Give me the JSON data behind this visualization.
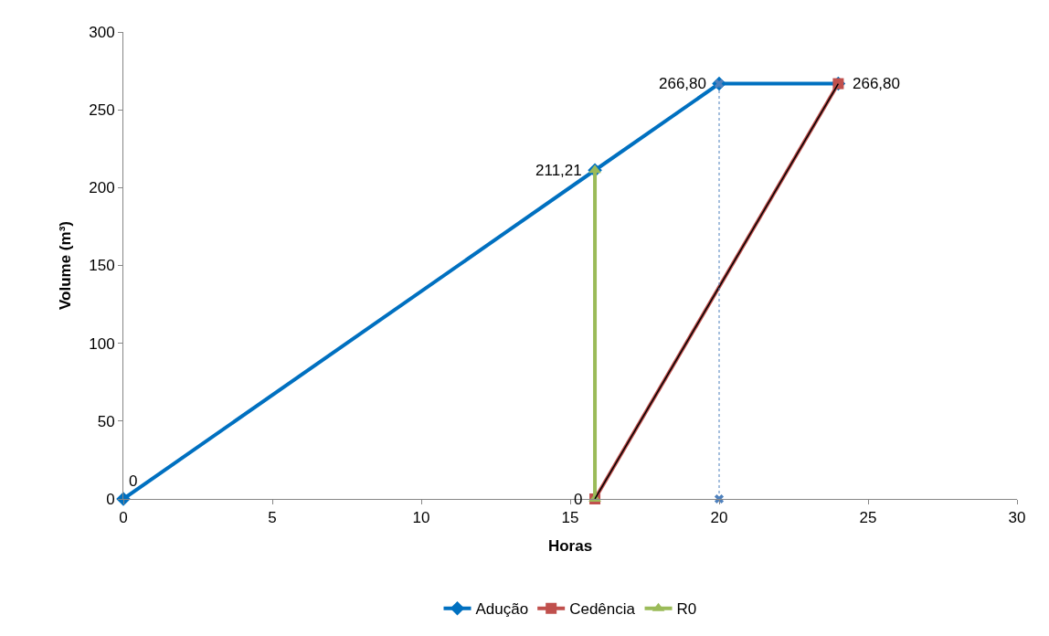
{
  "chart_data": {
    "type": "line",
    "xlabel": "Horas",
    "ylabel": "Volume (m³)",
    "xlim": [
      0,
      30
    ],
    "xticks": [
      0,
      5,
      10,
      15,
      20,
      25,
      30
    ],
    "ylim": [
      0,
      300
    ],
    "yticks": [
      0,
      50,
      100,
      150,
      200,
      250,
      300
    ],
    "legend": "bottom",
    "series": [
      {
        "name": "Adução",
        "color": "#0070c0",
        "marker": "diamond",
        "x": [
          0,
          15.83,
          20,
          24
        ],
        "values": [
          0,
          211.21,
          266.8,
          266.8
        ],
        "value_labels": [
          "0",
          "211,21",
          "266,80",
          null
        ]
      },
      {
        "name": "Cedência",
        "color": "#c0504d",
        "marker": "square",
        "x": [
          15.83,
          24
        ],
        "values": [
          0,
          266.8
        ],
        "value_labels": [
          "0",
          "266,80"
        ]
      },
      {
        "name": "R0",
        "color": "#9bbb59",
        "marker": "triangle",
        "x": [
          15.83,
          15.83
        ],
        "values": [
          0,
          211.21
        ]
      },
      {
        "color": "#000000",
        "marker": "none",
        "x": [
          15.83,
          24
        ],
        "values": [
          0,
          266.8
        ]
      },
      {
        "color": "#4f81bd",
        "marker": "cross",
        "line_style": "dotted",
        "x": [
          20,
          20
        ],
        "values": [
          0,
          266.8
        ]
      }
    ]
  }
}
